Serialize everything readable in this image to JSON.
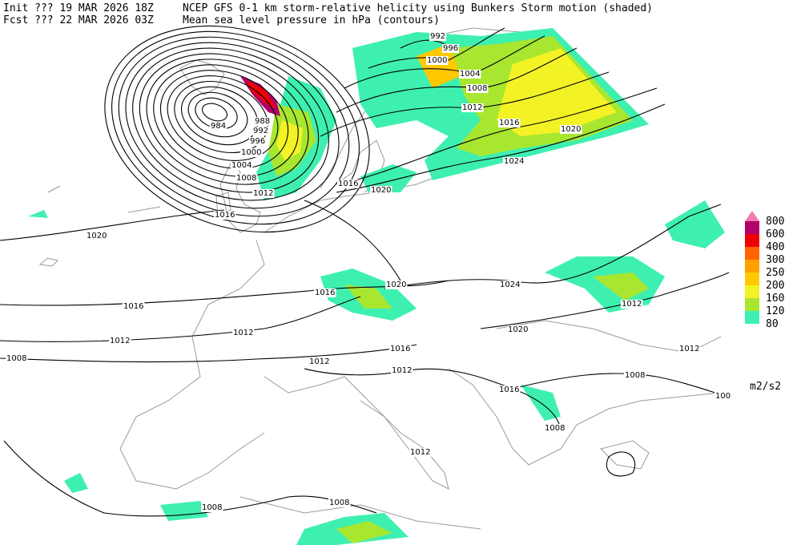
{
  "header": {
    "init": "Init  ??? 19 MAR 2026 18Z",
    "fcst": "Fcst ??? 22 MAR 2026 03Z",
    "title": "NCEP GFS 0-1 km storm-relative helicity using Bunkers Storm motion (shaded)",
    "subtitle": "Mean sea level pressure in hPa (contours)"
  },
  "colorbar": {
    "levels": [
      80,
      120,
      160,
      200,
      250,
      300,
      400,
      600,
      800
    ],
    "colors": [
      "#3ef0b0",
      "#a8e630",
      "#f2f224",
      "#ffc800",
      "#ffa000",
      "#ff6400",
      "#f00000",
      "#b0006a",
      "#f07cb4"
    ],
    "unit": "m2/s2"
  },
  "contour_labels": [
    992,
    996,
    1000,
    1004,
    1008,
    1012,
    1016,
    1020,
    1024,
    984,
    988,
    992,
    996,
    1000,
    1004,
    1008,
    1012,
    1016,
    1016,
    1020,
    1020,
    1020,
    1024,
    1016,
    1016,
    1012,
    1012,
    1020,
    1012,
    1016,
    1012,
    1012,
    1008,
    1012,
    1008,
    1016,
    1008,
    1012,
    1008,
    1008,
    100
  ]
}
